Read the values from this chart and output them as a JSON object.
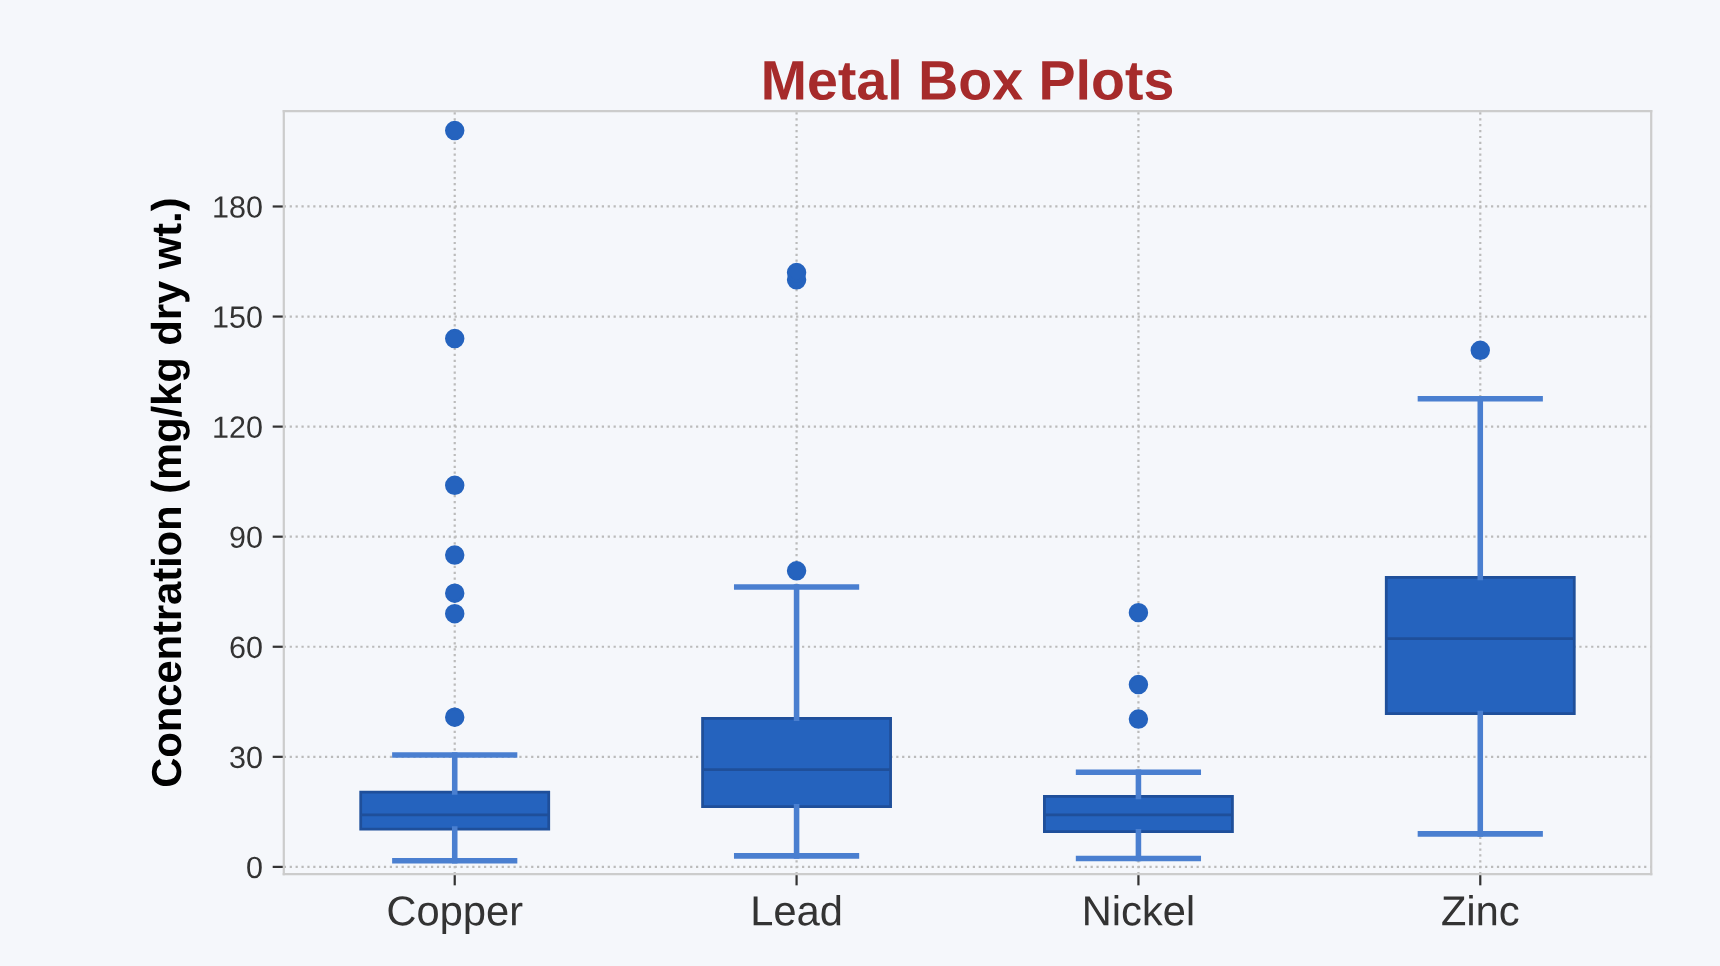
{
  "chart_data": {
    "type": "box",
    "title": "Metal Box Plots",
    "ylabel": "Concentration (mg/kg dry wt.)",
    "categories": [
      "Copper",
      "Lead",
      "Nickel",
      "Zinc"
    ],
    "boxes": [
      {
        "low": 1.7,
        "q1": 10.3,
        "median": 14.2,
        "q3": 20.4,
        "high": 30.5,
        "outliers": [
          40.8,
          69,
          74.6,
          85,
          104,
          144,
          200.7
        ]
      },
      {
        "low": 3,
        "q1": 16.4,
        "median": 26.5,
        "q3": 40.5,
        "high": 76.3,
        "outliers": [
          80.7,
          160,
          162
        ]
      },
      {
        "low": 2.3,
        "q1": 9.6,
        "median": 14.2,
        "q3": 19.2,
        "high": 25.8,
        "outliers": [
          40.3,
          49.7,
          69.3
        ]
      },
      {
        "low": 9,
        "q1": 41.8,
        "median": 62.2,
        "q3": 78.9,
        "high": 127.6,
        "outliers": [
          140.8
        ]
      }
    ],
    "color": "#2563be",
    "ylim": [
      -2,
      206
    ],
    "yticks": [
      0,
      30,
      60,
      90,
      120,
      150,
      180
    ],
    "grid": true
  }
}
